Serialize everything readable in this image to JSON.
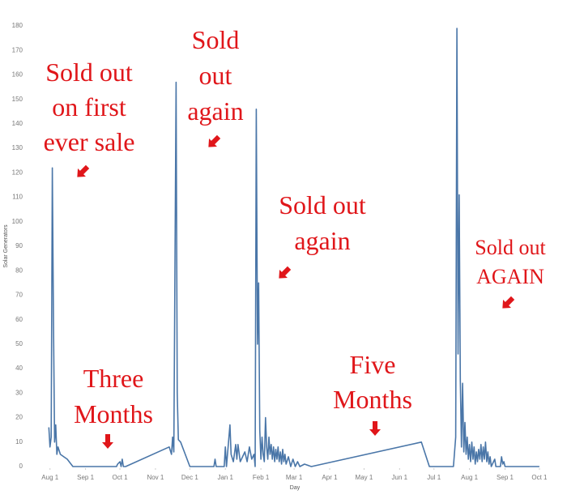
{
  "chart_data": {
    "type": "line",
    "x_label": "Day",
    "y_label": "Solar Generators",
    "xlim": [
      -9,
      444
    ],
    "ylim": [
      0,
      180
    ],
    "xticks": [
      {
        "value": 0,
        "label": "Aug 1"
      },
      {
        "value": 31,
        "label": "Sep 1"
      },
      {
        "value": 61,
        "label": "Oct 1"
      },
      {
        "value": 92,
        "label": "Nov 1"
      },
      {
        "value": 122,
        "label": "Dec 1"
      },
      {
        "value": 153,
        "label": "Jan 1"
      },
      {
        "value": 184,
        "label": "Feb 1"
      },
      {
        "value": 213,
        "label": "Mar 1"
      },
      {
        "value": 244,
        "label": "Apr 1"
      },
      {
        "value": 274,
        "label": "May 1"
      },
      {
        "value": 305,
        "label": "Jun 1"
      },
      {
        "value": 335,
        "label": "Jul 1"
      },
      {
        "value": 366,
        "label": "Aug 1"
      },
      {
        "value": 397,
        "label": "Sep 1"
      },
      {
        "value": 427,
        "label": "Oct 1"
      }
    ],
    "yticks": [
      0,
      10,
      20,
      30,
      40,
      50,
      60,
      70,
      80,
      90,
      100,
      110,
      120,
      130,
      140,
      150,
      160,
      170,
      180
    ],
    "series": [
      {
        "color": "#4a76a8",
        "x": [
          -1,
          0,
          1,
          2,
          3,
          4,
          5,
          6,
          7,
          9,
          12,
          15,
          20,
          58,
          59,
          61,
          62,
          63,
          64,
          66,
          104,
          106,
          107,
          108,
          110,
          111,
          112,
          114,
          118,
          122,
          143,
          144,
          145,
          152,
          153,
          154,
          157,
          158,
          160,
          162,
          163,
          164,
          166,
          168,
          170,
          172,
          174,
          176,
          178,
          179,
          180,
          181,
          182,
          183,
          184,
          185,
          186,
          187,
          188,
          189,
          190,
          191,
          192,
          193,
          194,
          195,
          196,
          197,
          198,
          199,
          200,
          201,
          202,
          203,
          204,
          205,
          206,
          208,
          210,
          212,
          214,
          216,
          218,
          222,
          228,
          324,
          331,
          352,
          354,
          355,
          356,
          357,
          358,
          359,
          360,
          361,
          362,
          363,
          364,
          365,
          366,
          367,
          368,
          369,
          370,
          371,
          372,
          373,
          374,
          375,
          376,
          377,
          378,
          379,
          380,
          381,
          382,
          383,
          384,
          385,
          388,
          389,
          393,
          394,
          395,
          396,
          397,
          427
        ],
        "values": [
          16,
          8,
          12,
          122,
          60,
          10,
          17,
          5,
          8,
          5,
          4,
          3,
          0,
          0,
          1,
          2,
          0,
          3,
          0,
          0,
          8,
          5,
          12,
          6,
          157,
          30,
          11,
          10,
          5,
          0,
          0,
          3,
          0,
          0,
          8,
          0,
          17,
          5,
          2,
          9,
          3,
          9,
          2,
          4,
          6,
          2,
          8,
          3,
          5,
          0,
          146,
          50,
          75,
          15,
          3,
          12,
          5,
          2,
          20,
          8,
          3,
          12,
          5,
          9,
          3,
          8,
          2,
          7,
          3,
          8,
          2,
          6,
          1,
          7,
          2,
          5,
          1,
          4,
          0,
          3,
          0,
          2,
          0,
          1,
          0,
          10,
          0,
          0,
          12,
          179,
          46,
          111,
          35,
          8,
          34,
          6,
          18,
          5,
          12,
          3,
          9,
          2,
          10,
          3,
          8,
          1,
          6,
          2,
          7,
          3,
          9,
          2,
          8,
          3,
          10,
          2,
          6,
          1,
          4,
          0,
          3,
          0,
          0,
          4,
          1,
          2,
          0,
          0
        ]
      }
    ],
    "annotations": [
      {
        "lines": [
          "Sold out",
          "on first",
          "ever sale"
        ]
      },
      {
        "lines": [
          "Sold",
          "out",
          "again"
        ]
      },
      {
        "lines": [
          "Three",
          "Months"
        ]
      },
      {
        "lines": [
          "Sold out",
          "again"
        ]
      },
      {
        "lines": [
          "Five",
          "Months"
        ]
      },
      {
        "lines": [
          "Sold out",
          "AGAIN"
        ]
      }
    ]
  }
}
